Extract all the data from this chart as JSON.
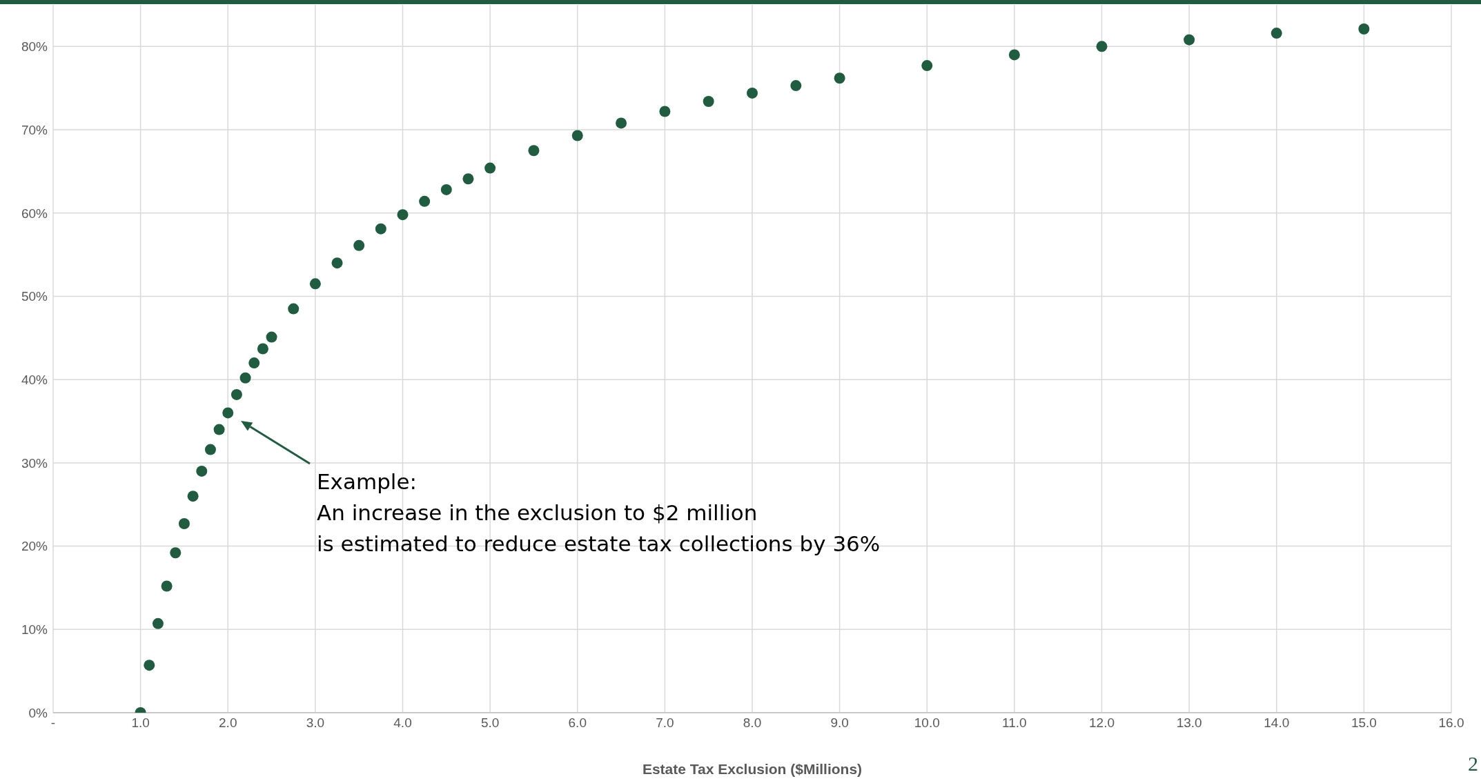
{
  "chart_data": {
    "type": "scatter",
    "xlabel": "Estate Tax Exclusion ($Millions)",
    "x": [
      1.0,
      1.1,
      1.2,
      1.3,
      1.4,
      1.5,
      1.6,
      1.7,
      1.8,
      1.9,
      2.0,
      2.1,
      2.2,
      2.3,
      2.4,
      2.5,
      2.75,
      3.0,
      3.25,
      3.5,
      3.75,
      4.0,
      4.25,
      4.5,
      4.75,
      5.0,
      5.5,
      6.0,
      6.5,
      7.0,
      7.5,
      8.0,
      8.5,
      9.0,
      10.0,
      11.0,
      12.0,
      13.0,
      14.0,
      15.0
    ],
    "series": [
      {
        "color": "#1f5c40",
        "values": [
          0,
          5.7,
          10.7,
          15.2,
          19.2,
          22.7,
          26.0,
          29.0,
          31.6,
          34.0,
          36,
          38.2,
          40.2,
          42.0,
          43.7,
          45.1,
          48.5,
          51.5,
          54.0,
          56.1,
          58.1,
          59.8,
          61.4,
          62.8,
          64.1,
          65.4,
          67.5,
          69.3,
          70.8,
          72.2,
          73.4,
          74.4,
          75.3,
          76.2,
          77.7,
          79.0,
          80.0,
          80.8,
          81.6,
          82.1
        ]
      }
    ],
    "xlim": [
      0,
      16
    ],
    "xticks": [
      {
        "value": 0,
        "label": "-"
      },
      {
        "value": 1,
        "label": "1.0"
      },
      {
        "value": 2,
        "label": "2.0"
      },
      {
        "value": 3,
        "label": "3.0"
      },
      {
        "value": 4,
        "label": "4.0"
      },
      {
        "value": 5,
        "label": "5.0"
      },
      {
        "value": 6,
        "label": "6.0"
      },
      {
        "value": 7,
        "label": "7.0"
      },
      {
        "value": 8,
        "label": "8.0"
      },
      {
        "value": 9,
        "label": "9.0"
      },
      {
        "value": 10,
        "label": "10.0"
      },
      {
        "value": 11,
        "label": "11.0"
      },
      {
        "value": 12,
        "label": "12.0"
      },
      {
        "value": 13,
        "label": "13.0"
      },
      {
        "value": 14,
        "label": "14.0"
      },
      {
        "value": 15,
        "label": "15.0"
      },
      {
        "value": 16,
        "label": "16.0"
      }
    ],
    "ylim": [
      0,
      85
    ],
    "yticks": [
      {
        "value": 0,
        "label": "0%"
      },
      {
        "value": 10,
        "label": "10%"
      },
      {
        "value": 20,
        "label": "20%"
      },
      {
        "value": 30,
        "label": "30%"
      },
      {
        "value": 40,
        "label": "40%"
      },
      {
        "value": 50,
        "label": "50%"
      },
      {
        "value": 60,
        "label": "60%"
      },
      {
        "value": 70,
        "label": "70%"
      },
      {
        "value": 80,
        "label": "80%"
      }
    ],
    "annotations": [
      "Example:\nAn increase in the exclusion to $2 million\nis estimated to reduce estate tax collections by 36%",
      "2"
    ],
    "grid": true,
    "marker": "circle",
    "legend": false
  }
}
